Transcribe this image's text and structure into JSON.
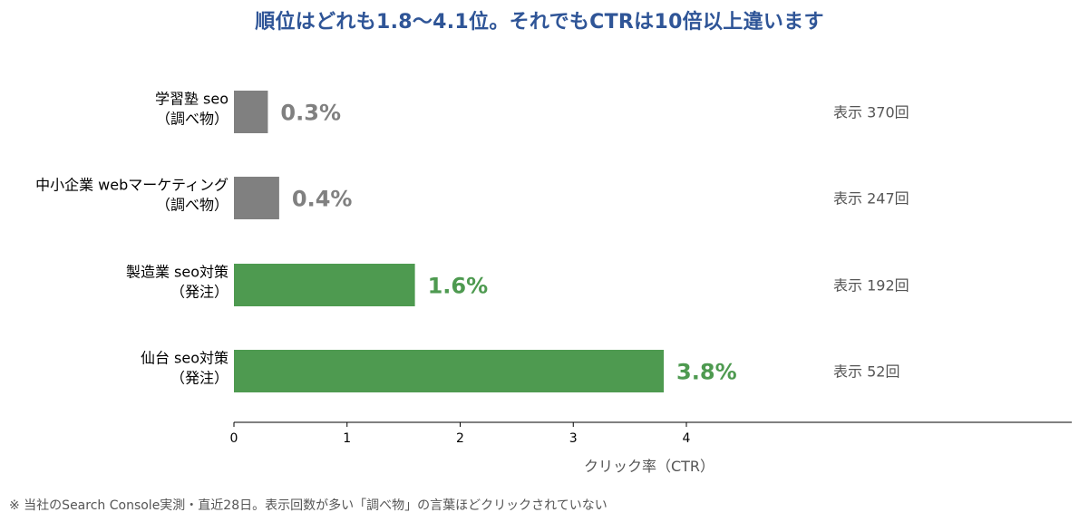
{
  "title": "順位はどれも1.8〜4.1位。それでもCTRは10倍以上違います",
  "footnote": "※ 当社のSearch Console実測・直近28日。表示回数が多い「調べ物」の言葉ほどクリックされていない",
  "colors": {
    "title": "#2f5597",
    "research": "#808080",
    "order": "#4e9a50",
    "impressions_text": "#555555",
    "axis": "#000000"
  },
  "chart_data": {
    "type": "bar",
    "orientation": "horizontal",
    "title": "順位はどれも1.8〜4.1位。それでもCTRは10倍以上違います",
    "xlabel": "クリック率（CTR）",
    "ylabel": "",
    "xlim": [
      0,
      4
    ],
    "xticks": [
      "0",
      "1",
      "2",
      "3",
      "4"
    ],
    "grid": false,
    "categories": [
      [
        "学習塾 seo",
        "（調べ物）"
      ],
      [
        "中小企業 webマーケティング",
        "（調べ物）"
      ],
      [
        "製造業 seo対策",
        "（発注）"
      ],
      [
        "仙台 seo対策",
        "（発注）"
      ]
    ],
    "values": [
      0.3,
      0.4,
      1.6,
      3.8
    ],
    "value_labels": [
      "0.3%",
      "0.4%",
      "1.6%",
      "3.8%"
    ],
    "bar_colors": [
      "#808080",
      "#808080",
      "#4e9a50",
      "#4e9a50"
    ],
    "impressions_labels": [
      "表示 370回",
      "表示 247回",
      "表示 192回",
      "表示 52回"
    ]
  }
}
